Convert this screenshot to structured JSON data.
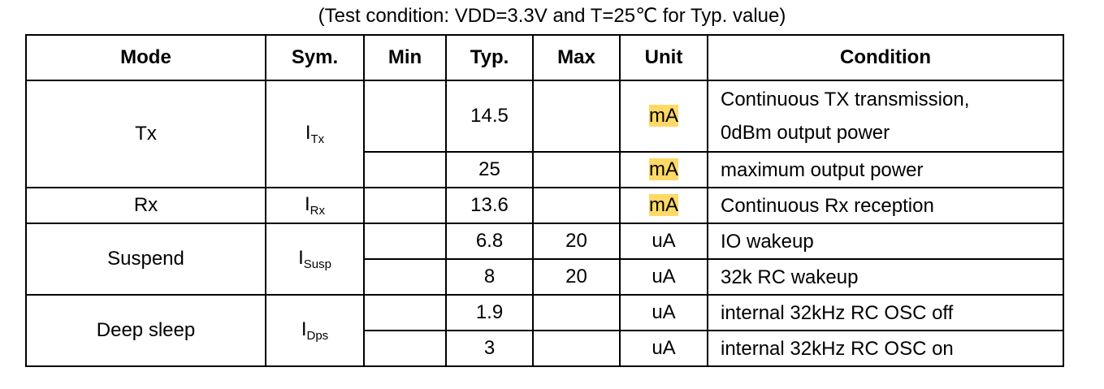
{
  "caption": "(Test condition: VDD=3.3V and T=25℃  for Typ. value)",
  "headers": {
    "mode": "Mode",
    "sym": "Sym.",
    "min": "Min",
    "typ": "Typ.",
    "max": "Max",
    "unit": "Unit",
    "condition": "Condition"
  },
  "highlight_color": "#FFD966",
  "groups": [
    {
      "mode": "Tx",
      "sym_main": "I",
      "sym_sub": "Tx",
      "rows": [
        {
          "min": "",
          "typ": "14.5",
          "max": "",
          "unit": "mA",
          "unit_highlight": true,
          "condition_line1": "Continuous TX transmission,",
          "condition_line2": "0dBm output power"
        },
        {
          "min": "",
          "typ": "25",
          "max": "",
          "unit": "mA",
          "unit_highlight": true,
          "condition": "maximum output power"
        }
      ]
    },
    {
      "mode": "Rx",
      "sym_main": "I",
      "sym_sub": "Rx",
      "rows": [
        {
          "min": "",
          "typ": "13.6",
          "max": "",
          "unit": "mA",
          "unit_highlight": true,
          "condition": "Continuous Rx reception"
        }
      ]
    },
    {
      "mode": "Suspend",
      "sym_main": "I",
      "sym_sub": "Susp",
      "rows": [
        {
          "min": "",
          "typ": "6.8",
          "max": "20",
          "unit": "uA",
          "condition": "IO wakeup"
        },
        {
          "min": "",
          "typ": "8",
          "max": "20",
          "unit": "uA",
          "condition": "32k RC wakeup"
        }
      ]
    },
    {
      "mode": "Deep sleep",
      "sym_main": "I",
      "sym_sub": "Dps",
      "rows": [
        {
          "min": "",
          "typ": "1.9",
          "max": "",
          "unit": "uA",
          "condition": "internal 32kHz RC OSC off"
        },
        {
          "min": "",
          "typ": "3",
          "max": "",
          "unit": "uA",
          "condition": "internal 32kHz RC OSC on"
        }
      ]
    }
  ]
}
